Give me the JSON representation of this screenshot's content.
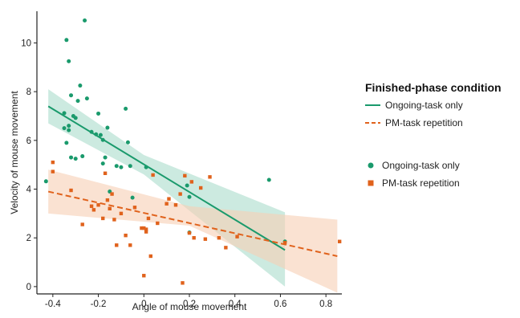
{
  "chart_data": {
    "type": "scatter",
    "xlabel": "Angle of mouse movement",
    "ylabel": "Velocity of mouse movement",
    "xlim": [
      -0.47,
      0.87
    ],
    "ylim": [
      -0.3,
      11.3
    ],
    "x_ticks": [
      -0.4,
      -0.2,
      0,
      0.2,
      0.4,
      0.6,
      0.8
    ],
    "x_tick_labels": [
      "-0.4",
      "-0.2",
      "0",
      "0.2",
      "0.4",
      "0.6",
      "0.8"
    ],
    "y_ticks": [
      0,
      2,
      4,
      6,
      8,
      10
    ],
    "y_tick_labels": [
      "0",
      "2",
      "4",
      "6",
      "8",
      "10"
    ],
    "grid": false,
    "legend_title": "Finished-phase condition",
    "legend_placement": "right",
    "series": [
      {
        "name": "Ongoing-task only",
        "color": "#1a9a6c",
        "band_color": "#aadccb",
        "marker": "circle",
        "line_style": "solid",
        "fit": {
          "x": [
            -0.42,
            0.62
          ],
          "y": [
            7.4,
            1.5
          ]
        },
        "band": {
          "x": [
            -0.42,
            0.0,
            0.62
          ],
          "upper": [
            8.1,
            5.4,
            3.05
          ],
          "lower": [
            6.7,
            4.6,
            0.0
          ]
        },
        "points": [
          [
            -0.43,
            4.32
          ],
          [
            -0.35,
            7.12
          ],
          [
            -0.35,
            6.5
          ],
          [
            -0.34,
            5.9
          ],
          [
            -0.34,
            10.12
          ],
          [
            -0.33,
            9.25
          ],
          [
            -0.33,
            6.42
          ],
          [
            -0.33,
            6.6
          ],
          [
            -0.32,
            7.85
          ],
          [
            -0.32,
            5.3
          ],
          [
            -0.31,
            7.0
          ],
          [
            -0.3,
            6.92
          ],
          [
            -0.3,
            5.25
          ],
          [
            -0.29,
            7.62
          ],
          [
            -0.28,
            8.25
          ],
          [
            -0.27,
            5.35
          ],
          [
            -0.26,
            10.92
          ],
          [
            -0.25,
            7.72
          ],
          [
            -0.23,
            6.35
          ],
          [
            -0.21,
            6.25
          ],
          [
            -0.2,
            7.1
          ],
          [
            -0.19,
            6.22
          ],
          [
            -0.18,
            6.02
          ],
          [
            -0.18,
            5.05
          ],
          [
            -0.17,
            5.3
          ],
          [
            -0.16,
            6.52
          ],
          [
            -0.15,
            3.9
          ],
          [
            -0.12,
            4.95
          ],
          [
            -0.1,
            4.9
          ],
          [
            -0.08,
            7.3
          ],
          [
            -0.07,
            5.92
          ],
          [
            -0.06,
            4.95
          ],
          [
            -0.05,
            3.65
          ],
          [
            0.01,
            4.9
          ],
          [
            0.19,
            4.15
          ],
          [
            0.2,
            3.68
          ],
          [
            0.2,
            2.22
          ],
          [
            0.55,
            4.38
          ],
          [
            0.62,
            1.85
          ]
        ]
      },
      {
        "name": "PM-task repetition",
        "color": "#e0621c",
        "band_color": "#f7cfb4",
        "marker": "square",
        "line_style": "dashed",
        "fit": {
          "x": [
            -0.42,
            0.85
          ],
          "y": [
            3.9,
            1.25
          ]
        },
        "band": {
          "x": [
            -0.42,
            0.2,
            0.85
          ],
          "upper": [
            4.8,
            3.3,
            2.75
          ],
          "lower": [
            3.0,
            2.5,
            -0.25
          ]
        },
        "points": [
          [
            -0.4,
            5.1
          ],
          [
            -0.4,
            4.72
          ],
          [
            -0.32,
            3.95
          ],
          [
            -0.27,
            2.55
          ],
          [
            -0.23,
            3.3
          ],
          [
            -0.22,
            3.15
          ],
          [
            -0.2,
            3.35
          ],
          [
            -0.18,
            2.8
          ],
          [
            -0.17,
            4.65
          ],
          [
            -0.16,
            3.55
          ],
          [
            -0.15,
            3.2
          ],
          [
            -0.14,
            3.8
          ],
          [
            -0.13,
            2.75
          ],
          [
            -0.12,
            1.7
          ],
          [
            -0.1,
            3.0
          ],
          [
            -0.08,
            2.1
          ],
          [
            -0.06,
            1.7
          ],
          [
            -0.04,
            3.25
          ],
          [
            -0.01,
            2.4
          ],
          [
            0.0,
            0.45
          ],
          [
            0.0,
            2.4
          ],
          [
            0.01,
            2.35
          ],
          [
            0.01,
            2.25
          ],
          [
            0.02,
            2.8
          ],
          [
            0.03,
            1.25
          ],
          [
            0.04,
            4.58
          ],
          [
            0.06,
            2.6
          ],
          [
            0.1,
            3.4
          ],
          [
            0.11,
            3.6
          ],
          [
            0.14,
            3.35
          ],
          [
            0.16,
            3.8
          ],
          [
            0.17,
            0.15
          ],
          [
            0.18,
            4.55
          ],
          [
            0.2,
            2.2
          ],
          [
            0.21,
            4.3
          ],
          [
            0.22,
            2.0
          ],
          [
            0.25,
            4.05
          ],
          [
            0.27,
            1.95
          ],
          [
            0.29,
            4.5
          ],
          [
            0.33,
            2.0
          ],
          [
            0.36,
            1.6
          ],
          [
            0.41,
            2.05
          ],
          [
            0.62,
            1.8
          ],
          [
            0.86,
            1.85
          ]
        ]
      }
    ]
  },
  "legend": {
    "title": "Finished-phase condition",
    "lines": [
      {
        "label": "Ongoing-task only",
        "color": "#1a9a6c",
        "style": "solid"
      },
      {
        "label": "PM-task repetition",
        "color": "#e0621c",
        "style": "dashed"
      }
    ],
    "markers": [
      {
        "label": "Ongoing-task only",
        "color": "#1a9a6c",
        "shape": "circle-icon"
      },
      {
        "label": "PM-task repetition",
        "color": "#e0621c",
        "shape": "square-icon"
      }
    ]
  }
}
